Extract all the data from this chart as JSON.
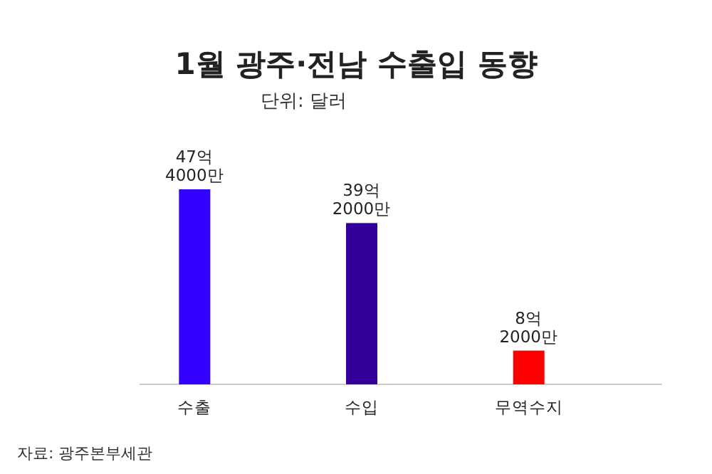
{
  "chart_data": {
    "type": "bar",
    "title": "1월  광주·전남 수출입 동향",
    "subtitle": "단위: 달러",
    "categories": [
      "수출",
      "수입",
      "무역수지"
    ],
    "values": [
      47.4,
      39.2,
      8.2
    ],
    "colors": [
      "#3300ff",
      "#330099",
      "#ff0000"
    ],
    "value_labels": [
      "47억\n4000만",
      "39억\n2000만",
      "8억\n2000만"
    ],
    "annotations": [
      "자료: 광주본부세관"
    ]
  }
}
